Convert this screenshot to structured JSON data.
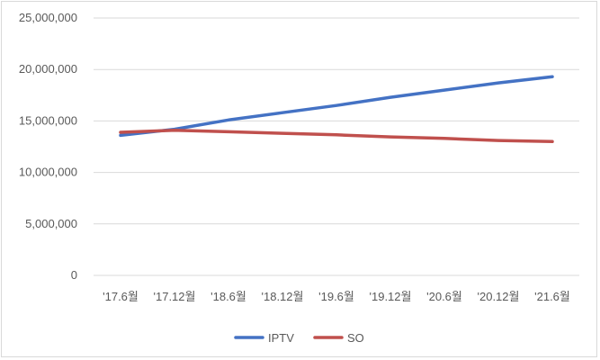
{
  "chart_data": {
    "type": "line",
    "categories": [
      "'17.6월",
      "'17.12월",
      "'18.6월",
      "'18.12월",
      "'19.6월",
      "'19.12월",
      "'20.6월",
      "'20.12월",
      "'21.6월"
    ],
    "series": [
      {
        "name": "IPTV",
        "color": "#4472c4",
        "values": [
          13600000,
          14200000,
          15100000,
          15800000,
          16500000,
          17300000,
          18000000,
          18700000,
          19300000
        ]
      },
      {
        "name": "SO",
        "color": "#c0504d",
        "values": [
          13900000,
          14100000,
          13950000,
          13800000,
          13650000,
          13450000,
          13300000,
          13100000,
          13000000
        ]
      }
    ],
    "y_ticks": [
      "25,000,000",
      "20,000,000",
      "15,000,000",
      "10,000,000",
      "5,000,000",
      "0"
    ],
    "ylim": [
      0,
      25000000
    ],
    "grid": true,
    "legend_position": "bottom",
    "title": "",
    "xlabel": "",
    "ylabel": ""
  }
}
